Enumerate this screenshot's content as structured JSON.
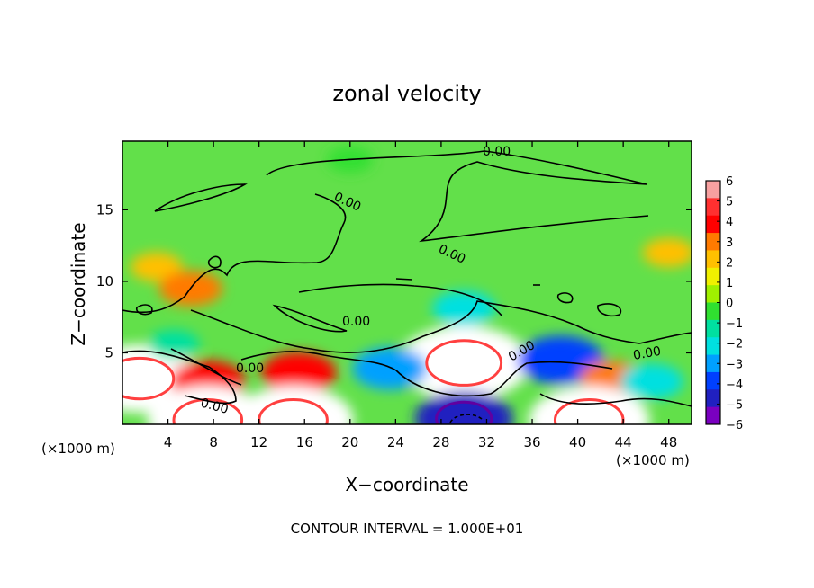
{
  "chart_data": {
    "type": "heatmap",
    "title": "zonal velocity",
    "xlabel": "X−coordinate",
    "ylabel": "Z−coordinate",
    "x_unit_left": "(×1000 m)",
    "x_unit_right": "(×1000 m)",
    "footer": "CONTOUR INTERVAL = 1.000E+01",
    "xlim": [
      0,
      50
    ],
    "ylim": [
      0,
      19.8
    ],
    "x_ticks": [
      4,
      8,
      12,
      16,
      20,
      24,
      28,
      32,
      36,
      40,
      44,
      48
    ],
    "y_ticks": [
      5,
      10,
      15
    ],
    "contour_labels": [
      "0.00",
      "0.00",
      "0.00",
      "0.00",
      "0.00",
      "0.00",
      "0.00",
      "0.00"
    ],
    "colorbar": {
      "range": [
        -6,
        6
      ],
      "tick_values": [
        6,
        5,
        4,
        3,
        2,
        1,
        0,
        -1,
        -2,
        -3,
        -4,
        -5,
        -6
      ],
      "tick_labels": [
        "6",
        "5",
        "4",
        "3",
        "2",
        "1",
        "0",
        "−1",
        "−2",
        "−3",
        "−4",
        "−5",
        "−6"
      ],
      "colors": [
        "#f7a0a0",
        "#ff3030",
        "#ff0000",
        "#ff7a00",
        "#ffc000",
        "#f0f000",
        "#a0f000",
        "#30e030",
        "#00e0a0",
        "#00e0e0",
        "#00a0ff",
        "#0040ff",
        "#2020c0",
        "#7a00c0"
      ]
    },
    "features": [
      {
        "x": 30,
        "y": 4.3,
        "value": 9,
        "shape": "strong eastward jet core"
      },
      {
        "x": 1.5,
        "y": 3.2,
        "value": 8,
        "shape": "eastward core"
      },
      {
        "x": 7.5,
        "y": 3.0,
        "value": 4,
        "shape": "tilted eastward band"
      },
      {
        "x": 15.5,
        "y": 3.6,
        "value": 4,
        "shape": "eastward blob"
      },
      {
        "x": 38.5,
        "y": 4.5,
        "value": -5,
        "shape": "westward blob"
      },
      {
        "x": 23.5,
        "y": 3.9,
        "value": -4,
        "shape": "westward blob"
      },
      {
        "x": 43,
        "y": 3.2,
        "value": 3,
        "shape": "eastward blob"
      },
      {
        "x": 30,
        "y": 0.4,
        "value": -6,
        "shape": "westward surface flow"
      },
      {
        "x": 7.5,
        "y": 0.3,
        "value": 8,
        "shape": "eastward surface core"
      },
      {
        "x": 15,
        "y": 0.3,
        "value": 8,
        "shape": "eastward surface core"
      },
      {
        "x": 41,
        "y": 0.3,
        "value": 8,
        "shape": "eastward surface core"
      },
      {
        "x": 3,
        "y": 11,
        "value": 2,
        "shape": "weak eastward layer"
      },
      {
        "x": 48,
        "y": 12,
        "value": 2,
        "shape": "weak eastward layer"
      },
      {
        "x": 6,
        "y": 9.5,
        "value": 3,
        "shape": "small eastward patch"
      },
      {
        "x": 30,
        "y": 8.1,
        "value": -3,
        "shape": "weak westward patch"
      },
      {
        "x": 46.5,
        "y": 3.0,
        "value": -3,
        "shape": "westward patch"
      },
      {
        "x": 4.5,
        "y": 5.6,
        "value": -2,
        "shape": "weak westward patch"
      },
      {
        "x": 20,
        "y": 18.5,
        "value": -1.5,
        "shape": "weak westward band"
      }
    ]
  }
}
